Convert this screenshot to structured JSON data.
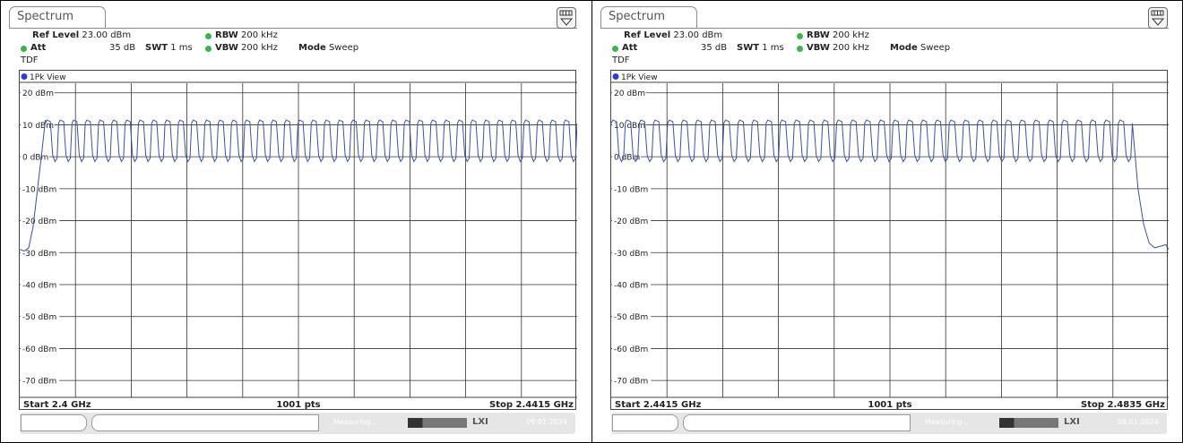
{
  "panels": [
    {
      "tab_label": "Spectrum",
      "ref_level_label": "Ref Level",
      "ref_level_value": "23.00 dBm",
      "att_label": "Att",
      "att_value": "35 dB",
      "swt_label": "SWT",
      "swt_value": "1 ms",
      "rbw_label": "RBW",
      "rbw_value": "200 kHz",
      "vbw_label": "VBW",
      "vbw_value": "200 kHz",
      "mode_label": "Mode",
      "mode_value": "Sweep",
      "tdf": "TDF",
      "trace_label": "1Pk View",
      "start": "Start 2.4 GHz",
      "pts": "1001 pts",
      "stop": "Stop 2.4415 GHz",
      "status_text": "Measuring...",
      "date": "09.01.2024",
      "chart_data": {
        "type": "line",
        "ylim": [
          -75,
          23
        ],
        "y_ticks": [
          "20 dBm",
          "10 dBm",
          "0 dBm",
          "-10 dBm",
          "-20 dBm",
          "-30 dBm",
          "-40 dBm",
          "-50 dBm",
          "-60 dBm",
          "-70 dBm"
        ],
        "x_range_ghz": [
          2.4,
          2.4415
        ],
        "series": [
          {
            "color": "#3b4fa8",
            "description_points": [
              [
                0.0,
                -29
              ],
              [
                0.008,
                -29.5
              ],
              [
                0.016,
                -28.5
              ],
              [
                0.024,
                -22
              ],
              [
                0.032,
                -10
              ],
              [
                0.04,
                2
              ],
              [
                0.046,
                11.5
              ]
            ],
            "pulse_train": {
              "start": 0.046,
              "end": 1.0,
              "peak_dbm": 11.5,
              "trough_dbm": -1.5,
              "count": 40
            }
          }
        ]
      }
    },
    {
      "tab_label": "Spectrum",
      "ref_level_label": "Ref Level",
      "ref_level_value": "23.00 dBm",
      "att_label": "Att",
      "att_value": "35 dB",
      "swt_label": "SWT",
      "swt_value": "1 ms",
      "rbw_label": "RBW",
      "rbw_value": "200 kHz",
      "vbw_label": "VBW",
      "vbw_value": "200 kHz",
      "mode_label": "Mode",
      "mode_value": "Sweep",
      "tdf": "TDF",
      "trace_label": "1Pk View",
      "start": "Start 2.4415 GHz",
      "pts": "1001 pts",
      "stop": "Stop 2.4835 GHz",
      "status_text": "Measuring...",
      "date": "09.01.2024",
      "chart_data": {
        "type": "line",
        "ylim": [
          -75,
          23
        ],
        "y_ticks": [
          "20 dBm",
          "10 dBm",
          "0 dBm",
          "-10 dBm",
          "-20 dBm",
          "-30 dBm",
          "-40 dBm",
          "-50 dBm",
          "-60 dBm",
          "-70 dBm"
        ],
        "x_range_ghz": [
          2.4415,
          2.4835
        ],
        "series": [
          {
            "color": "#3b4fa8",
            "pulse_train": {
              "start": 0.0,
              "end": 0.935,
              "peak_dbm": 11.5,
              "trough_dbm": -1.5,
              "count": 37
            },
            "description_points": [
              [
                0.935,
                10
              ],
              [
                0.945,
                -10
              ],
              [
                0.955,
                -21
              ],
              [
                0.965,
                -27
              ],
              [
                0.975,
                -28.5
              ],
              [
                0.985,
                -28
              ],
              [
                0.995,
                -27.5
              ],
              [
                1.0,
                -29
              ]
            ]
          }
        ]
      }
    }
  ]
}
